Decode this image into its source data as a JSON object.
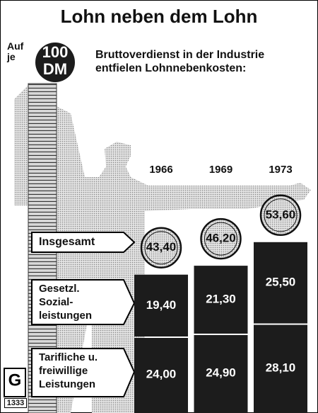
{
  "chart_data": {
    "type": "stacked-bar",
    "title": "Lohn neben dem Lohn",
    "badge_prefix": "Auf\nje",
    "badge": "100\nDM",
    "subtitle": "Bruttoverdienst in der Industrie\nentfielen Lohnnebenkosten:",
    "categories": [
      "1966",
      "1969",
      "1973"
    ],
    "series": [
      {
        "name": "Tarifliche u.\nfreiwillige\nLeistungen",
        "color": "#1c1c1c",
        "values": [
          24.0,
          24.9,
          28.1
        ],
        "value_labels": [
          "24,00",
          "24,90",
          "28,10"
        ]
      },
      {
        "name": "Gesetzl.\nSozial-\nleistungen",
        "color": "#1c1c1c",
        "values": [
          19.4,
          21.3,
          25.5
        ],
        "value_labels": [
          "19,40",
          "21,30",
          "25,50"
        ]
      }
    ],
    "totals": {
      "name": "Insgesamt",
      "values": [
        43.4,
        46.2,
        53.6
      ],
      "value_labels": [
        "43,40",
        "46,20",
        "53,60"
      ]
    },
    "logo": "1333"
  }
}
